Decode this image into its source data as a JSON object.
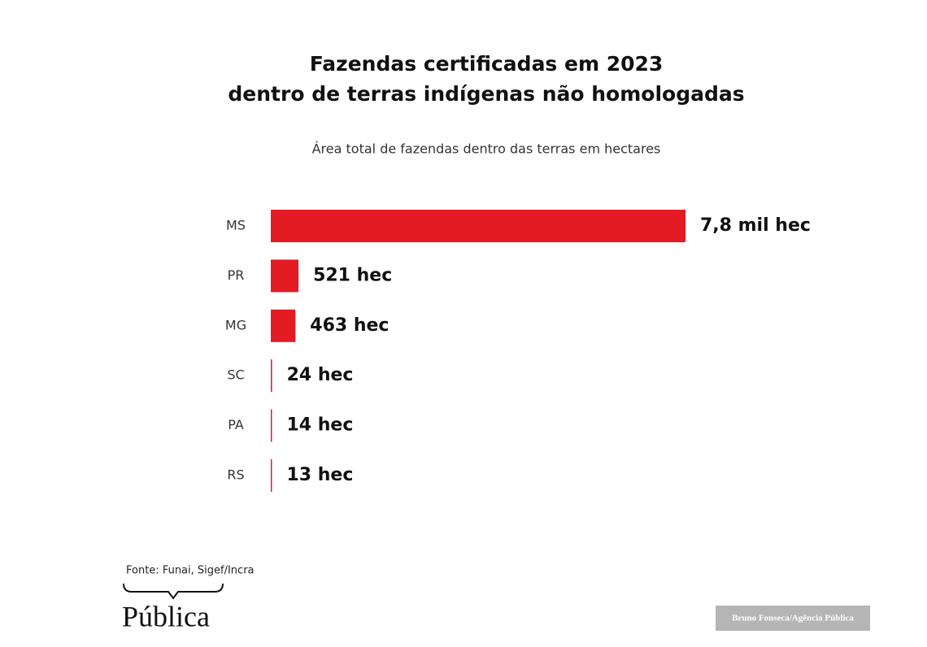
{
  "chart_data": {
    "type": "bar",
    "orientation": "horizontal",
    "title": [
      "Fazendas certificadas em 2023",
      "dentro de terras indígenas não homologadas"
    ],
    "subtitle": "Área total de fazendas dentro das terras em hectares",
    "categories": [
      "MS",
      "PR",
      "MG",
      "SC",
      "PA",
      "RS"
    ],
    "values": [
      7800,
      521,
      463,
      24,
      14,
      13
    ],
    "value_labels": [
      "7,8 mil hec",
      "521 hec",
      "463 hec",
      "24 hec",
      "14 hec",
      "13 hec"
    ],
    "color": "#e31b23",
    "source": "Fonte: Funai, Sigef/Incra",
    "logo": "Pública",
    "credit": "Bruno Fonseca/Agência Pública"
  }
}
